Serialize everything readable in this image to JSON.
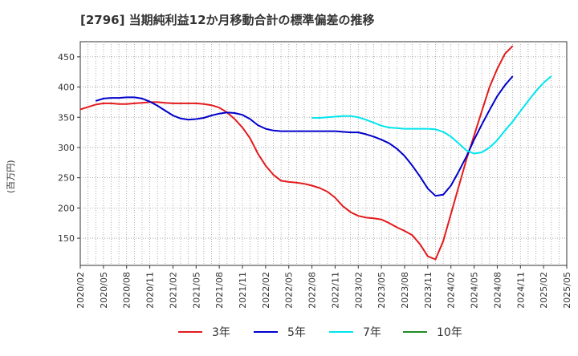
{
  "chart_data": {
    "type": "line",
    "title": "[2796]  当期純利益12か月移動合計の標準偏差の推移",
    "ylabel": "(百万円)",
    "xlabel": "",
    "ylim": [
      105,
      475
    ],
    "yticks": [
      150,
      200,
      250,
      300,
      350,
      400,
      450
    ],
    "grid": true,
    "legend_position": "bottom",
    "x_ticks": [
      "2020/02",
      "2020/05",
      "2020/08",
      "2020/11",
      "2021/02",
      "2021/05",
      "2021/08",
      "2021/11",
      "2022/02",
      "2022/05",
      "2022/08",
      "2022/11",
      "2023/02",
      "2023/05",
      "2023/08",
      "2023/11",
      "2024/02",
      "2024/05",
      "2024/08",
      "2024/11",
      "2025/02",
      "2025/05"
    ],
    "series": [
      {
        "name": "3年",
        "color": "#e41a1c",
        "points": [
          [
            0,
            363
          ],
          [
            1,
            367
          ],
          [
            2,
            371
          ],
          [
            3,
            373
          ],
          [
            4,
            373
          ],
          [
            5,
            372
          ],
          [
            6,
            372
          ],
          [
            7,
            373
          ],
          [
            8,
            374
          ],
          [
            9,
            375
          ],
          [
            10,
            375
          ],
          [
            11,
            374
          ],
          [
            12,
            373
          ],
          [
            13,
            373
          ],
          [
            14,
            373
          ],
          [
            15,
            373
          ],
          [
            16,
            372
          ],
          [
            17,
            370
          ],
          [
            18,
            366
          ],
          [
            19,
            358
          ],
          [
            20,
            347
          ],
          [
            21,
            333
          ],
          [
            22,
            315
          ],
          [
            23,
            290
          ],
          [
            24,
            270
          ],
          [
            25,
            255
          ],
          [
            26,
            245
          ],
          [
            27,
            243
          ],
          [
            28,
            242
          ],
          [
            29,
            240
          ],
          [
            30,
            237
          ],
          [
            31,
            233
          ],
          [
            32,
            227
          ],
          [
            33,
            217
          ],
          [
            34,
            203
          ],
          [
            35,
            193
          ],
          [
            36,
            187
          ],
          [
            37,
            184
          ],
          [
            38,
            183
          ],
          [
            39,
            181
          ],
          [
            40,
            175
          ],
          [
            41,
            168
          ],
          [
            42,
            162
          ],
          [
            43,
            155
          ],
          [
            44,
            140
          ],
          [
            45,
            120
          ],
          [
            46,
            115
          ],
          [
            47,
            145
          ],
          [
            48,
            190
          ],
          [
            49,
            235
          ],
          [
            50,
            280
          ],
          [
            51,
            320
          ],
          [
            52,
            360
          ],
          [
            53,
            400
          ],
          [
            54,
            430
          ],
          [
            55,
            455
          ],
          [
            56,
            468
          ]
        ]
      },
      {
        "name": "5年",
        "color": "#0000cc",
        "points": [
          [
            2,
            377
          ],
          [
            3,
            381
          ],
          [
            4,
            382
          ],
          [
            5,
            382
          ],
          [
            6,
            383
          ],
          [
            7,
            383
          ],
          [
            8,
            381
          ],
          [
            9,
            376
          ],
          [
            10,
            369
          ],
          [
            11,
            361
          ],
          [
            12,
            353
          ],
          [
            13,
            348
          ],
          [
            14,
            346
          ],
          [
            15,
            347
          ],
          [
            16,
            349
          ],
          [
            17,
            353
          ],
          [
            18,
            356
          ],
          [
            19,
            358
          ],
          [
            20,
            357
          ],
          [
            21,
            354
          ],
          [
            22,
            347
          ],
          [
            23,
            337
          ],
          [
            24,
            331
          ],
          [
            25,
            328
          ],
          [
            26,
            327
          ],
          [
            27,
            327
          ],
          [
            28,
            327
          ],
          [
            29,
            327
          ],
          [
            30,
            327
          ],
          [
            31,
            327
          ],
          [
            32,
            327
          ],
          [
            33,
            327
          ],
          [
            34,
            326
          ],
          [
            35,
            325
          ],
          [
            36,
            325
          ],
          [
            37,
            322
          ],
          [
            38,
            318
          ],
          [
            39,
            313
          ],
          [
            40,
            307
          ],
          [
            41,
            298
          ],
          [
            42,
            286
          ],
          [
            43,
            270
          ],
          [
            44,
            252
          ],
          [
            45,
            232
          ],
          [
            46,
            220
          ],
          [
            47,
            222
          ],
          [
            48,
            237
          ],
          [
            49,
            260
          ],
          [
            50,
            285
          ],
          [
            51,
            313
          ],
          [
            52,
            338
          ],
          [
            53,
            362
          ],
          [
            54,
            385
          ],
          [
            55,
            403
          ],
          [
            56,
            418
          ]
        ]
      },
      {
        "name": "7年",
        "color": "#00e5ee",
        "points": [
          [
            30,
            349
          ],
          [
            31,
            349
          ],
          [
            32,
            350
          ],
          [
            33,
            351
          ],
          [
            34,
            352
          ],
          [
            35,
            352
          ],
          [
            36,
            350
          ],
          [
            37,
            346
          ],
          [
            38,
            341
          ],
          [
            39,
            336
          ],
          [
            40,
            333
          ],
          [
            41,
            332
          ],
          [
            42,
            331
          ],
          [
            43,
            331
          ],
          [
            44,
            331
          ],
          [
            45,
            331
          ],
          [
            46,
            330
          ],
          [
            47,
            326
          ],
          [
            48,
            318
          ],
          [
            49,
            307
          ],
          [
            50,
            295
          ],
          [
            51,
            290
          ],
          [
            52,
            292
          ],
          [
            53,
            300
          ],
          [
            54,
            312
          ],
          [
            55,
            328
          ],
          [
            56,
            343
          ],
          [
            57,
            360
          ],
          [
            58,
            377
          ],
          [
            59,
            393
          ],
          [
            60,
            407
          ],
          [
            61,
            418
          ]
        ]
      },
      {
        "name": "10年",
        "color": "#228b22",
        "points": []
      }
    ]
  }
}
